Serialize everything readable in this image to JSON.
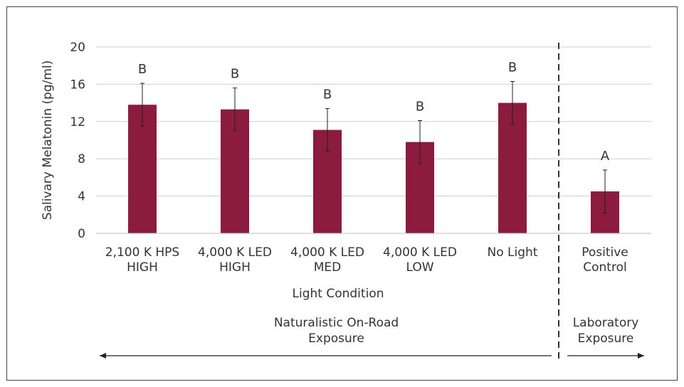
{
  "chart_data": {
    "type": "bar",
    "ylabel": "Salivary Melatonin (pg/ml)",
    "xlabel": "Light Condition",
    "ylim": [
      0,
      20
    ],
    "yticks": [
      0,
      4,
      8,
      12,
      16,
      20
    ],
    "grid": true,
    "categories": [
      [
        "2,100 K HPS",
        "HIGH"
      ],
      [
        "4,000 K LED",
        "HIGH"
      ],
      [
        "4,000 K LED",
        "MED"
      ],
      [
        "4,000 K LED",
        "LOW"
      ],
      [
        "No Light"
      ],
      [
        "Positive",
        "Control"
      ]
    ],
    "values": [
      13.8,
      13.3,
      11.1,
      9.8,
      14.0,
      4.5
    ],
    "error": [
      2.3,
      2.3,
      2.3,
      2.3,
      2.3,
      2.3
    ],
    "significance_labels": [
      "B",
      "B",
      "B",
      "B",
      "B",
      "A"
    ],
    "bar_color": "#8b1c40",
    "groups": [
      {
        "label": [
          "Naturalistic On-Road",
          "Exposure"
        ],
        "categories": [
          0,
          1,
          2,
          3,
          4
        ]
      },
      {
        "label": [
          "Laboratory",
          "Exposure"
        ],
        "categories": [
          5
        ]
      }
    ]
  }
}
